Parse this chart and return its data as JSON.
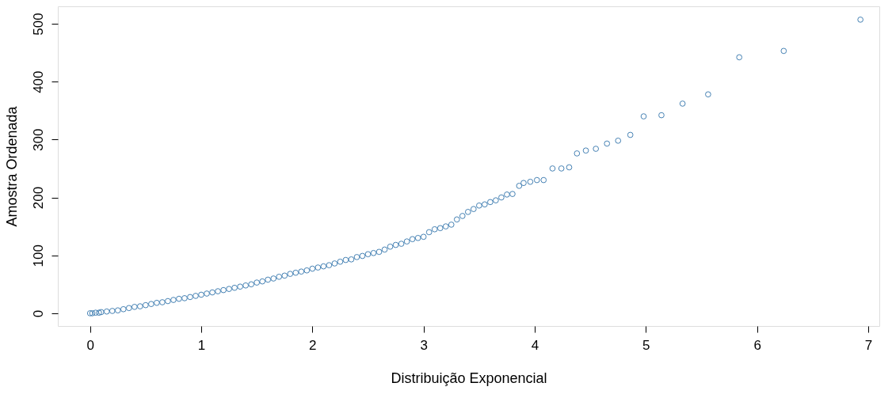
{
  "chart_data": {
    "type": "scatter",
    "xlabel": "Distribuição Exponencial",
    "ylabel": "Amostra Ordenada",
    "xlim": [
      -0.29,
      7.1
    ],
    "ylim": [
      -22,
      530
    ],
    "xticks": [
      0,
      1,
      2,
      3,
      4,
      5,
      6,
      7
    ],
    "yticks": [
      0,
      100,
      200,
      300,
      400,
      500
    ],
    "grid": false,
    "series": [
      {
        "color": "#4682b4",
        "x": [
          0.0,
          0.02,
          0.05,
          0.08,
          0.1,
          0.15,
          0.2,
          0.25,
          0.3,
          0.35,
          0.4,
          0.45,
          0.5,
          0.55,
          0.6,
          0.65,
          0.7,
          0.75,
          0.8,
          0.85,
          0.9,
          0.95,
          1.0,
          1.05,
          1.1,
          1.15,
          1.2,
          1.25,
          1.3,
          1.35,
          1.4,
          1.45,
          1.5,
          1.55,
          1.6,
          1.65,
          1.7,
          1.75,
          1.8,
          1.85,
          1.9,
          1.95,
          2.0,
          2.05,
          2.1,
          2.15,
          2.2,
          2.25,
          2.3,
          2.35,
          2.4,
          2.45,
          2.5,
          2.55,
          2.6,
          2.65,
          2.7,
          2.75,
          2.8,
          2.85,
          2.9,
          2.95,
          3.0,
          3.05,
          3.1,
          3.15,
          3.2,
          3.25,
          3.3,
          3.35,
          3.4,
          3.45,
          3.5,
          3.55,
          3.6,
          3.65,
          3.7,
          3.75,
          3.8,
          3.86,
          3.9,
          3.96,
          4.02,
          4.08,
          4.16,
          4.24,
          4.31,
          4.38,
          4.46,
          4.55,
          4.65,
          4.75,
          4.86,
          4.98,
          5.14,
          5.33,
          5.56,
          5.84,
          6.24,
          6.93
        ],
        "values": [
          0,
          0,
          1,
          1,
          2,
          3,
          4,
          5,
          7,
          9,
          11,
          12,
          14,
          16,
          18,
          19,
          21,
          23,
          25,
          26,
          28,
          30,
          32,
          34,
          36,
          38,
          40,
          42,
          44,
          46,
          48,
          50,
          53,
          55,
          58,
          60,
          63,
          65,
          68,
          70,
          72,
          74,
          77,
          79,
          81,
          83,
          86,
          89,
          92,
          93,
          97,
          99,
          102,
          104,
          106,
          110,
          115,
          118,
          120,
          124,
          128,
          130,
          132,
          140,
          145,
          147,
          150,
          153,
          162,
          168,
          175,
          180,
          186,
          188,
          192,
          195,
          200,
          205,
          206,
          220,
          225,
          227,
          230,
          230,
          250,
          250,
          252,
          276,
          281,
          284,
          293,
          298,
          308,
          340,
          342,
          362,
          378,
          442,
          453,
          507
        ]
      }
    ]
  }
}
